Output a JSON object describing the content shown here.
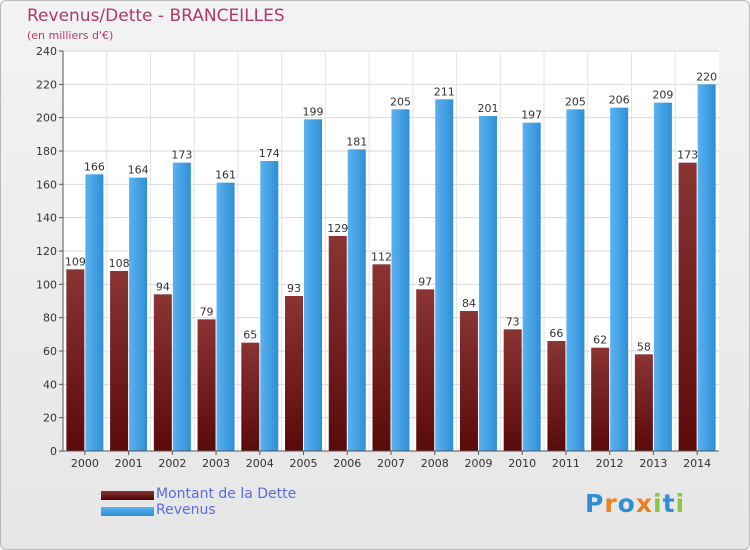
{
  "title": "Revenus/Dette - BRANCEILLES",
  "subtitle": "(en milliers d'€)",
  "colors": {
    "title": "#b0386a",
    "debt_dark": "#5a0a0a",
    "debt_light": "#8a3434",
    "revenue_dark": "#2a86cc",
    "revenue_light": "#5ab2ef",
    "legend_text": "#5b6ae6",
    "axis": "#555555"
  },
  "legend": {
    "debt_label": "Montant de la Dette",
    "revenue_label": "Revenus"
  },
  "logo": {
    "text": "Proxiti"
  },
  "chart_data": {
    "type": "bar",
    "title": "Revenus/Dette - BRANCEILLES",
    "subtitle": "(en milliers d'€)",
    "xlabel": "",
    "ylabel": "",
    "ylim": [
      0,
      240
    ],
    "yticks": [
      0,
      20,
      40,
      60,
      80,
      100,
      120,
      140,
      160,
      180,
      200,
      220,
      240
    ],
    "grid": true,
    "legend_position": "bottom-left",
    "categories": [
      "2000",
      "2001",
      "2002",
      "2003",
      "2004",
      "2005",
      "2006",
      "2007",
      "2008",
      "2009",
      "2010",
      "2011",
      "2012",
      "2013",
      "2014"
    ],
    "series": [
      {
        "name": "Montant de la Dette",
        "values": [
          109,
          108,
          94,
          79,
          65,
          93,
          129,
          112,
          97,
          84,
          73,
          66,
          62,
          58,
          173
        ]
      },
      {
        "name": "Revenus",
        "values": [
          166,
          164,
          173,
          161,
          174,
          199,
          181,
          205,
          211,
          201,
          197,
          205,
          206,
          209,
          220
        ]
      }
    ]
  }
}
